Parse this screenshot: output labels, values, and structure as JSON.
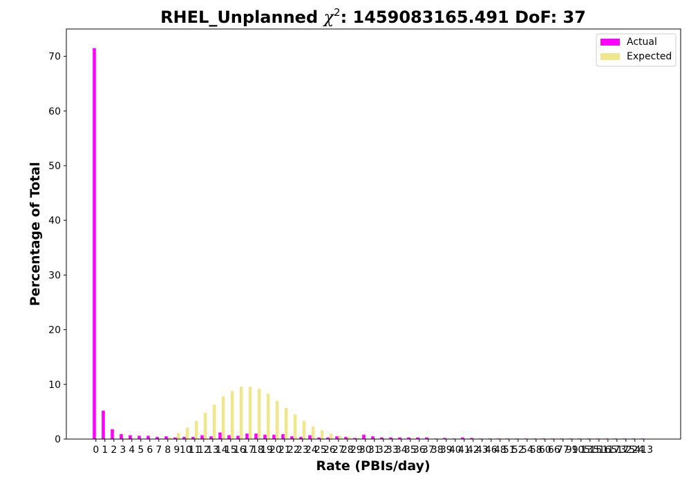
{
  "chart_data": {
    "type": "bar",
    "title": "RHEL_Unplanned χ²: 1459083165.491 DoF: 37",
    "title_parts": {
      "prefix": "RHEL_Unplanned ",
      "chi": "χ",
      "sup": "2",
      "suffix": ": 1459083165.491 DoF: 37"
    },
    "xlabel": "Rate (PBIs/day)",
    "ylabel": "Percentage of Total",
    "ylim": [
      0,
      75
    ],
    "yticks": [
      0,
      10,
      20,
      30,
      40,
      50,
      60,
      70
    ],
    "grid": false,
    "legend_position": "upper-right",
    "categories": [
      "0",
      "1",
      "2",
      "3",
      "4",
      "5",
      "6",
      "7",
      "8",
      "9",
      "10",
      "11",
      "12",
      "13",
      "14",
      "15",
      "16",
      "17",
      "18",
      "19",
      "20",
      "21",
      "22",
      "23",
      "24",
      "25",
      "26",
      "27",
      "28",
      "29",
      "30",
      "31",
      "32",
      "33",
      "34",
      "35",
      "36",
      "37",
      "38",
      "39",
      "40",
      "41",
      "42",
      "43",
      "46",
      "48",
      "51",
      "52",
      "54",
      "58",
      "60",
      "66",
      "77",
      "99",
      "105",
      "135",
      "151",
      "165",
      "173",
      "175",
      "224",
      "413"
    ],
    "series": [
      {
        "name": "Actual",
        "color": "#ff00ff",
        "values": [
          71.5,
          5.2,
          1.8,
          0.9,
          0.7,
          0.6,
          0.6,
          0.4,
          0.5,
          0.3,
          0.4,
          0.4,
          0.7,
          0.5,
          1.2,
          0.7,
          0.6,
          1.0,
          1.0,
          0.8,
          0.8,
          0.9,
          0.5,
          0.4,
          0.7,
          0.3,
          0.3,
          0.5,
          0.4,
          0.2,
          0.8,
          0.5,
          0.3,
          0.3,
          0.3,
          0.3,
          0.3,
          0.3,
          0.1,
          0.2,
          0.1,
          0.3,
          0.2,
          0.1,
          0.1,
          0.1,
          0.1,
          0.1,
          0.1,
          0.1,
          0.1,
          0.1,
          0.1,
          0.1,
          0.1,
          0.1,
          0.1,
          0.1,
          0.1,
          0.1,
          0.1,
          0.1
        ]
      },
      {
        "name": "Expected",
        "color": "#f0e68c",
        "values": [
          0,
          0,
          0,
          0,
          0,
          0,
          0,
          0.1,
          0.3,
          1.1,
          2.1,
          3.3,
          4.8,
          6.3,
          7.8,
          8.8,
          9.6,
          9.6,
          9.2,
          8.3,
          7.0,
          5.7,
          4.5,
          3.3,
          2.3,
          1.6,
          1.0,
          0.6,
          0.4,
          0.2,
          0.1,
          0.1,
          0,
          0,
          0,
          0,
          0,
          0,
          0,
          0,
          0,
          0,
          0,
          0,
          0,
          0,
          0,
          0,
          0,
          0,
          0,
          0,
          0,
          0,
          0,
          0,
          0,
          0,
          0,
          0,
          0,
          0
        ]
      }
    ]
  }
}
